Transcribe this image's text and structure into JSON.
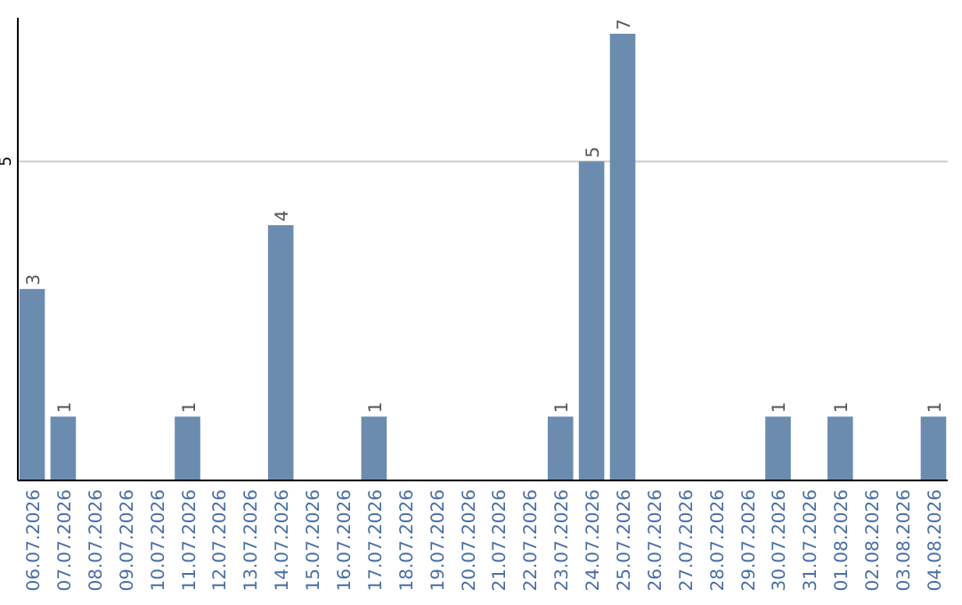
{
  "chart_data": {
    "type": "bar",
    "categories": [
      "06.07.2026",
      "07.07.2026",
      "08.07.2026",
      "09.07.2026",
      "10.07.2026",
      "11.07.2026",
      "12.07.2026",
      "13.07.2026",
      "14.07.2026",
      "15.07.2026",
      "16.07.2026",
      "17.07.2026",
      "18.07.2026",
      "19.07.2026",
      "20.07.2026",
      "21.07.2026",
      "22.07.2026",
      "23.07.2026",
      "24.07.2026",
      "25.07.2026",
      "26.07.2026",
      "27.07.2026",
      "28.07.2026",
      "29.07.2026",
      "30.07.2026",
      "31.07.2026",
      "01.08.2026",
      "02.08.2026",
      "03.08.2026",
      "04.08.2026"
    ],
    "values": [
      3,
      1,
      0,
      0,
      0,
      1,
      0,
      0,
      4,
      0,
      0,
      1,
      0,
      0,
      0,
      0,
      0,
      1,
      5,
      7,
      0,
      0,
      0,
      0,
      1,
      0,
      1,
      0,
      0,
      1
    ],
    "value_labels": [
      "3",
      "1",
      null,
      null,
      null,
      "1",
      null,
      null,
      "4",
      null,
      null,
      "1",
      null,
      null,
      null,
      null,
      null,
      "1",
      "5",
      "7",
      null,
      null,
      null,
      null,
      "1",
      null,
      "1",
      null,
      null,
      "1"
    ],
    "color": "#6b8cae",
    "ylim": [
      0,
      7.25
    ],
    "yticks": [
      5
    ],
    "grid": "y"
  }
}
